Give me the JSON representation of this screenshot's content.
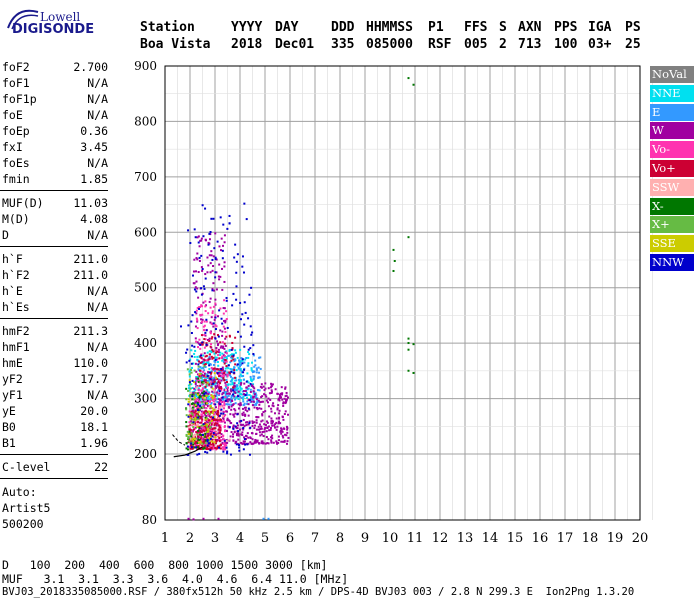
{
  "logo": {
    "line1": "Lowell",
    "line2": "DIGISONDE"
  },
  "header": {
    "columns": [
      {
        "label": "Station",
        "value": "Boa Vista"
      },
      {
        "label": "YYYY",
        "value": "2018"
      },
      {
        "label": "DAY",
        "value": "Dec01"
      },
      {
        "label": "DDD",
        "value": "335"
      },
      {
        "label": "HHMMSS",
        "value": "085000"
      },
      {
        "label": "P1",
        "value": "RSF"
      },
      {
        "label": "FFS",
        "value": "005"
      },
      {
        "label": "S",
        "value": "2"
      },
      {
        "label": "AXN",
        "value": "713"
      },
      {
        "label": "PPS",
        "value": "100"
      },
      {
        "label": "IGA",
        "value": "03+"
      },
      {
        "label": "PS",
        "value": "25"
      }
    ]
  },
  "parameters": [
    {
      "name": "foF2",
      "value": "2.700"
    },
    {
      "name": "foF1",
      "value": "N/A"
    },
    {
      "name": "foF1p",
      "value": "N/A"
    },
    {
      "name": "foE",
      "value": "N/A"
    },
    {
      "name": "foEp",
      "value": "0.36"
    },
    {
      "name": "fxI",
      "value": "3.45"
    },
    {
      "name": "foEs",
      "value": "N/A"
    },
    {
      "name": "fmin",
      "value": "1.85"
    },
    {
      "name": "MUF(D)",
      "value": "11.03"
    },
    {
      "name": "M(D)",
      "value": "4.08"
    },
    {
      "name": "D",
      "value": "N/A"
    },
    {
      "name": "h`F",
      "value": "211.0"
    },
    {
      "name": "h`F2",
      "value": "211.0"
    },
    {
      "name": "h`E",
      "value": "N/A"
    },
    {
      "name": "h`Es",
      "value": "N/A"
    },
    {
      "name": "hmF2",
      "value": "211.3"
    },
    {
      "name": "hmF1",
      "value": "N/A"
    },
    {
      "name": "hmE",
      "value": "110.0"
    },
    {
      "name": "yF2",
      "value": "17.7"
    },
    {
      "name": "yF1",
      "value": "N/A"
    },
    {
      "name": "yE",
      "value": "20.0"
    },
    {
      "name": "B0",
      "value": "18.1"
    },
    {
      "name": "B1",
      "value": "1.96"
    },
    {
      "name": "C-level",
      "value": "22"
    }
  ],
  "auto": {
    "line1": "Auto:",
    "line2": "Artist5",
    "line3": "500200"
  },
  "legend": [
    {
      "label": "NoVal",
      "color": "#808080"
    },
    {
      "label": "NNE",
      "color": "#00e0f0"
    },
    {
      "label": "E",
      "color": "#3399ff"
    },
    {
      "label": "W",
      "color": "#a000a0"
    },
    {
      "label": "Vo-",
      "color": "#ff33b0"
    },
    {
      "label": "Vo+",
      "color": "#cc0033"
    },
    {
      "label": "SSW",
      "color": "#ffb0b0"
    },
    {
      "label": "X-",
      "color": "#007700"
    },
    {
      "label": "X+",
      "color": "#66bb44"
    },
    {
      "label": "SSE",
      "color": "#cccc00"
    },
    {
      "label": "NNW",
      "color": "#0000cc"
    }
  ],
  "muf_table": {
    "d_label": "D",
    "d_values": "100  200  400  600  800 1000 1500 3000",
    "d_unit": "[km]",
    "muf_label": "MUF",
    "muf_values": "3.1  3.1  3.3  3.6  4.0  4.6  6.4 11.0",
    "muf_unit": "[MHz]"
  },
  "footer": "BVJ03_2018335085000.RSF / 380fx512h 50 kHz 2.5 km / DPS-4D BVJ03 003 / 2.8 N 299.3 E  Ion2Png 1.3.20",
  "chart_data": {
    "type": "scatter",
    "title": "",
    "xlabel": "",
    "ylabel": "",
    "xlim": [
      1,
      20
    ],
    "ylim": [
      80,
      900
    ],
    "x_ticks": [
      "1",
      "2",
      "3",
      "4",
      "5",
      "6",
      "7",
      "8",
      "9",
      "10",
      "11",
      "12",
      "13",
      "14",
      "15",
      "16",
      "17",
      "18",
      "19",
      "20"
    ],
    "y_ticks": [
      "80",
      "200",
      "300",
      "400",
      "500",
      "600",
      "700",
      "800",
      "900"
    ],
    "grid": true,
    "note_units": "x: frequency MHz, y: virtual height km",
    "series": [
      {
        "color_key": "NNE",
        "clusters": [
          {
            "x": [
              1.9,
              4.5
            ],
            "y": [
              300,
              390
            ],
            "n": 260
          }
        ]
      },
      {
        "color_key": "E",
        "clusters": [
          {
            "x": [
              2.2,
              4.8
            ],
            "y": [
              290,
              380
            ],
            "n": 220
          }
        ]
      },
      {
        "color_key": "W",
        "clusters": [
          {
            "x": [
              2.0,
              5.9
            ],
            "y": [
              220,
              330
            ],
            "n": 600
          },
          {
            "x": [
              2.1,
              3.4
            ],
            "y": [
              330,
              600
            ],
            "n": 160
          }
        ]
      },
      {
        "color_key": "Vo-",
        "clusters": [
          {
            "x": [
              1.9,
              3.4
            ],
            "y": [
              210,
              300
            ],
            "n": 240
          },
          {
            "x": [
              2.2,
              3.5
            ],
            "y": [
              300,
              480
            ],
            "n": 120
          }
        ]
      },
      {
        "color_key": "Vo+",
        "clusters": [
          {
            "x": [
              1.9,
              3.2
            ],
            "y": [
              210,
              280
            ],
            "n": 200
          },
          {
            "x": [
              2.3,
              3.8
            ],
            "y": [
              320,
              420
            ],
            "n": 90
          }
        ]
      },
      {
        "color_key": "SSW",
        "clusters": [
          {
            "x": [
              1.9,
              3.6
            ],
            "y": [
              220,
              330
            ],
            "n": 50
          }
        ]
      },
      {
        "color_key": "X-",
        "clusters": [
          {
            "x": [
              1.8,
              2.6
            ],
            "y": [
              210,
              340
            ],
            "n": 60
          }
        ]
      },
      {
        "color_key": "X+",
        "clusters": [
          {
            "x": [
              1.8,
              2.8
            ],
            "y": [
              220,
              360
            ],
            "n": 70
          }
        ]
      },
      {
        "color_key": "SSE",
        "clusters": [
          {
            "x": [
              1.9,
              3.0
            ],
            "y": [
              220,
              350
            ],
            "n": 60
          }
        ]
      },
      {
        "color_key": "NNW",
        "clusters": [
          {
            "x": [
              1.8,
              4.5
            ],
            "y": [
              200,
              660
            ],
            "n": 200
          }
        ]
      }
    ],
    "isolated_points": [
      {
        "color_key": "X-",
        "x": 10.7,
        "y": 880
      },
      {
        "color_key": "X-",
        "x": 10.9,
        "y": 868
      },
      {
        "color_key": "X-",
        "x": 10.7,
        "y": 593
      },
      {
        "color_key": "X-",
        "x": 10.1,
        "y": 570
      },
      {
        "color_key": "X-",
        "x": 10.15,
        "y": 550
      },
      {
        "color_key": "X-",
        "x": 10.1,
        "y": 532
      },
      {
        "color_key": "X-",
        "x": 10.7,
        "y": 410
      },
      {
        "color_key": "X-",
        "x": 10.7,
        "y": 402
      },
      {
        "color_key": "X-",
        "x": 10.9,
        "y": 400
      },
      {
        "color_key": "X-",
        "x": 10.7,
        "y": 390
      },
      {
        "color_key": "X-",
        "x": 10.7,
        "y": 352
      },
      {
        "color_key": "X-",
        "x": 10.9,
        "y": 348
      },
      {
        "color_key": "W",
        "x": 1.9,
        "y": 84
      },
      {
        "color_key": "W",
        "x": 2.1,
        "y": 83
      },
      {
        "color_key": "W",
        "x": 2.5,
        "y": 84
      },
      {
        "color_key": "W",
        "x": 3.1,
        "y": 84
      },
      {
        "color_key": "E",
        "x": 4.9,
        "y": 84
      },
      {
        "color_key": "E",
        "x": 5.1,
        "y": 84
      },
      {
        "color_key": "NNW",
        "x": 1.6,
        "y": 432
      }
    ],
    "profile_curve": [
      [
        1.35,
        195
      ],
      [
        1.8,
        198
      ],
      [
        2.2,
        205
      ],
      [
        2.5,
        213
      ]
    ],
    "dashed_curve": [
      [
        1.3,
        235
      ],
      [
        1.55,
        222
      ],
      [
        1.8,
        216
      ]
    ]
  }
}
